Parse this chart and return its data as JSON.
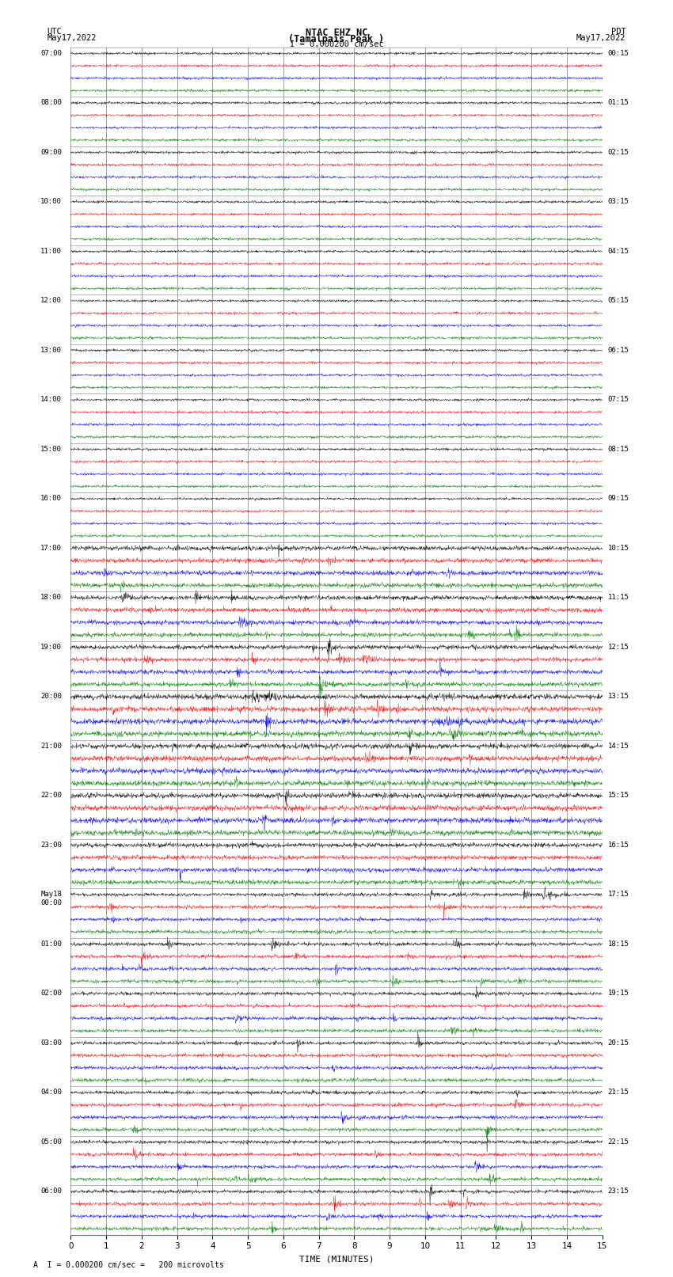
{
  "title_line1": "NTAC EHZ NC",
  "title_line2": "(Tamalpais Peak )",
  "scale_label": "I = 0.000200 cm/sec",
  "left_header": "UTC\nMay17,2022",
  "right_header": "PDT\nMay17,2022",
  "footer_label": "A  I = 0.000200 cm/sec =   200 microvolts",
  "xlabel": "TIME (MINUTES)",
  "left_times": [
    "07:00",
    "08:00",
    "09:00",
    "10:00",
    "11:00",
    "12:00",
    "13:00",
    "14:00",
    "15:00",
    "16:00",
    "17:00",
    "18:00",
    "19:00",
    "20:00",
    "21:00",
    "22:00",
    "23:00",
    "May18\n00:00",
    "01:00",
    "02:00",
    "03:00",
    "04:00",
    "05:00",
    "06:00"
  ],
  "right_times": [
    "00:15",
    "01:15",
    "02:15",
    "03:15",
    "04:15",
    "05:15",
    "06:15",
    "07:15",
    "08:15",
    "09:15",
    "10:15",
    "11:15",
    "12:15",
    "13:15",
    "14:15",
    "15:15",
    "16:15",
    "17:15",
    "18:15",
    "19:15",
    "20:15",
    "21:15",
    "22:15",
    "23:15"
  ],
  "n_hours": 24,
  "n_traces_per_hour": 4,
  "colors": [
    "black",
    "red",
    "blue",
    "green"
  ],
  "bg_color": "white",
  "grid_color": "#777777",
  "plot_bg": "white",
  "time_min": 0,
  "time_max": 15,
  "noise_base": 0.012,
  "seed": 42
}
